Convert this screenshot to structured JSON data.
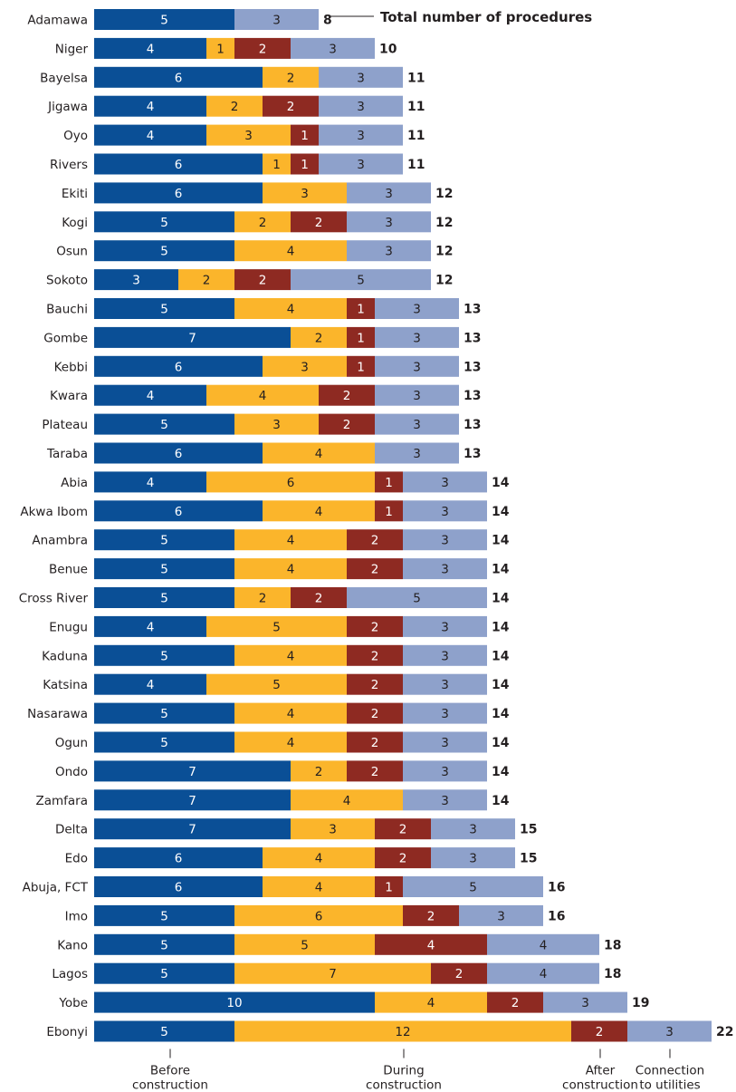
{
  "chart_data": {
    "type": "bar",
    "orientation": "horizontal",
    "stacked": true,
    "annotation": "Total number of procedures",
    "colors": [
      "#0a4f96",
      "#fbb52b",
      "#8e2a22",
      "#8ea1cb"
    ],
    "phase_labels": [
      {
        "lines": [
          "Before",
          "construction"
        ]
      },
      {
        "lines": [
          "During",
          "construction"
        ]
      },
      {
        "lines": [
          "After",
          "construction"
        ]
      },
      {
        "lines": [
          "Connection",
          "to utilities"
        ]
      }
    ],
    "rows": [
      {
        "name": "Adamawa",
        "values": [
          5,
          0,
          0,
          3
        ],
        "total": "8"
      },
      {
        "name": "Niger",
        "values": [
          4,
          1,
          2,
          3
        ],
        "total": "10"
      },
      {
        "name": "Bayelsa",
        "values": [
          6,
          2,
          0,
          3
        ],
        "total": "11"
      },
      {
        "name": "Jigawa",
        "values": [
          4,
          2,
          2,
          3
        ],
        "total": "11"
      },
      {
        "name": "Oyo",
        "values": [
          4,
          3,
          1,
          3
        ],
        "total": "11"
      },
      {
        "name": "Rivers",
        "values": [
          6,
          1,
          1,
          3
        ],
        "total": "11"
      },
      {
        "name": "Ekiti",
        "values": [
          6,
          3,
          0,
          3
        ],
        "total": "12"
      },
      {
        "name": "Kogi",
        "values": [
          5,
          2,
          2,
          3
        ],
        "total": "12"
      },
      {
        "name": "Osun",
        "values": [
          5,
          4,
          0,
          3
        ],
        "total": "12"
      },
      {
        "name": "Sokoto",
        "values": [
          3,
          2,
          2,
          5
        ],
        "total": "12"
      },
      {
        "name": "Bauchi",
        "values": [
          5,
          4,
          1,
          3
        ],
        "total": "13"
      },
      {
        "name": "Gombe",
        "values": [
          7,
          2,
          1,
          3
        ],
        "total": "13"
      },
      {
        "name": "Kebbi",
        "values": [
          6,
          3,
          1,
          3
        ],
        "total": "13"
      },
      {
        "name": "Kwara",
        "values": [
          4,
          4,
          2,
          3
        ],
        "total": "13"
      },
      {
        "name": "Plateau",
        "values": [
          5,
          3,
          2,
          3
        ],
        "total": "13"
      },
      {
        "name": "Taraba",
        "values": [
          6,
          4,
          0,
          3
        ],
        "total": "13"
      },
      {
        "name": "Abia",
        "values": [
          4,
          6,
          1,
          3
        ],
        "total": "14"
      },
      {
        "name": "Akwa Ibom",
        "values": [
          6,
          4,
          1,
          3
        ],
        "total": "14"
      },
      {
        "name": "Anambra",
        "values": [
          5,
          4,
          2,
          3
        ],
        "total": "14"
      },
      {
        "name": "Benue",
        "values": [
          5,
          4,
          2,
          3
        ],
        "total": "14"
      },
      {
        "name": "Cross River",
        "values": [
          5,
          2,
          2,
          5
        ],
        "total": "14"
      },
      {
        "name": "Enugu",
        "values": [
          4,
          5,
          2,
          3
        ],
        "total": "14"
      },
      {
        "name": "Kaduna",
        "values": [
          5,
          4,
          2,
          3
        ],
        "total": "14"
      },
      {
        "name": "Katsina",
        "values": [
          4,
          5,
          2,
          3
        ],
        "total": "14"
      },
      {
        "name": "Nasarawa",
        "values": [
          5,
          4,
          2,
          3
        ],
        "total": "14"
      },
      {
        "name": "Ogun",
        "values": [
          5,
          4,
          2,
          3
        ],
        "total": "14"
      },
      {
        "name": "Ondo",
        "values": [
          7,
          2,
          2,
          3
        ],
        "total": "14"
      },
      {
        "name": "Zamfara",
        "values": [
          7,
          4,
          0,
          3
        ],
        "total": "14"
      },
      {
        "name": "Delta",
        "values": [
          7,
          3,
          2,
          3
        ],
        "total": "15"
      },
      {
        "name": "Edo",
        "values": [
          6,
          4,
          2,
          3
        ],
        "total": "15"
      },
      {
        "name": "Abuja, FCT",
        "values": [
          6,
          4,
          1,
          5
        ],
        "total": "16"
      },
      {
        "name": "Imo",
        "values": [
          5,
          6,
          2,
          3
        ],
        "total": "16"
      },
      {
        "name": "Kano",
        "values": [
          5,
          5,
          4,
          4
        ],
        "total": "18"
      },
      {
        "name": "Lagos",
        "values": [
          5,
          7,
          2,
          4
        ],
        "total": "18"
      },
      {
        "name": "Yobe",
        "values": [
          10,
          4,
          2,
          3
        ],
        "total": "19"
      },
      {
        "name": "Ebonyi",
        "values": [
          5,
          12,
          2,
          3
        ],
        "total": "22"
      }
    ]
  }
}
